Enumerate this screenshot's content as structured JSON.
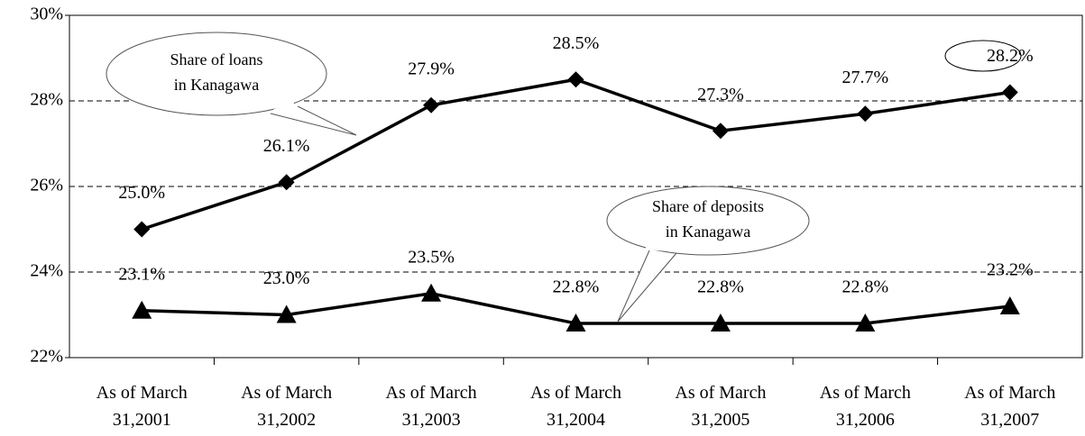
{
  "chart_data": {
    "type": "line",
    "categories": [
      "As of March\n31,2001",
      "As of March\n31,2002",
      "As of March\n31,2003",
      "As of March\n31,2004",
      "As of March\n31,2005",
      "As of March\n31,2006",
      "As of March\n31,2007"
    ],
    "series": [
      {
        "name": "Share of loans in Kanagawa",
        "color": "#000000",
        "marker": "diamond",
        "values": [
          25.0,
          26.1,
          27.9,
          28.5,
          27.3,
          27.7,
          28.2
        ],
        "value_labels": [
          "25.0%",
          "26.1%",
          "27.9%",
          "28.5%",
          "27.3%",
          "27.7%",
          "28.2%"
        ]
      },
      {
        "name": "Share of deposits in Kanagawa",
        "color": "#000000",
        "marker": "triangle",
        "values": [
          23.1,
          23.0,
          23.5,
          22.8,
          22.8,
          22.8,
          23.2
        ],
        "value_labels": [
          "23.1%",
          "23.0%",
          "23.5%",
          "22.8%",
          "22.8%",
          "22.8%",
          "23.2%"
        ]
      }
    ],
    "annotations": [
      "Share of loans\nin Kanagawa",
      "Share of deposits\nin Kanagawa"
    ],
    "ylim": [
      22,
      30
    ],
    "yticks": [
      {
        "value": 22,
        "label": "22%"
      },
      {
        "value": 24,
        "label": "24%"
      },
      {
        "value": 26,
        "label": "26%"
      },
      {
        "value": 28,
        "label": "28%"
      },
      {
        "value": 30,
        "label": "30%"
      }
    ],
    "grid": true
  }
}
